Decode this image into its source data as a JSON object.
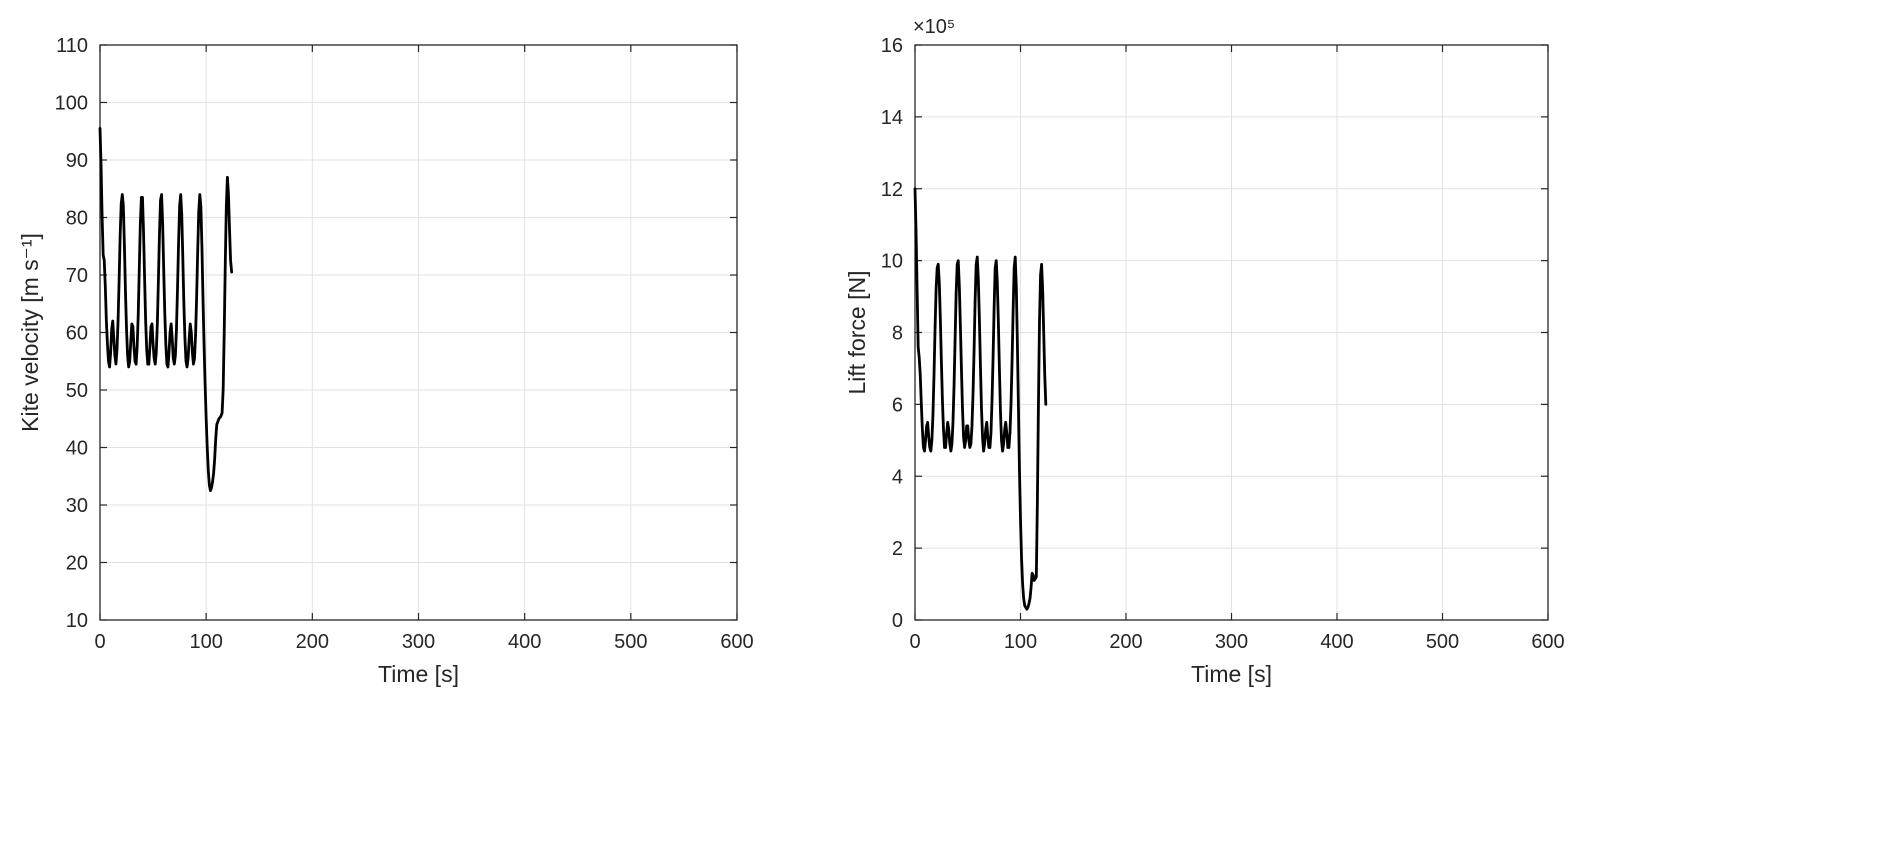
{
  "figure": {
    "background": "#ffffff",
    "axis_color": "#262626",
    "grid_color": "#e2e2e2",
    "line_color": "#000000"
  },
  "chart_data": [
    {
      "type": "line",
      "title": "",
      "xlabel": "Time [s]",
      "ylabel": "Kite velocity [m s⁻¹]",
      "xlim": [
        0,
        600
      ],
      "ylim": [
        10,
        110
      ],
      "xticks": [
        0,
        100,
        200,
        300,
        400,
        500,
        600
      ],
      "yticks": [
        10,
        20,
        30,
        40,
        50,
        60,
        70,
        80,
        90,
        100,
        110
      ],
      "xtick_labels": [
        "0",
        "100",
        "200",
        "300",
        "400",
        "500",
        "600"
      ],
      "ytick_labels": [
        "10",
        "20",
        "30",
        "40",
        "50",
        "60",
        "70",
        "80",
        "90",
        "100",
        "110"
      ],
      "grid": true,
      "legend": null,
      "series": [
        {
          "name": "kite_velocity",
          "points": [
            [
              0,
              95.5
            ],
            [
              1,
              89
            ],
            [
              2,
              80
            ],
            [
              3,
              73.5
            ],
            [
              4,
              72.5
            ],
            [
              5,
              68
            ],
            [
              6,
              62
            ],
            [
              7,
              58
            ],
            [
              8,
              55
            ],
            [
              9,
              54
            ],
            [
              10,
              56.5
            ],
            [
              11,
              60.5
            ],
            [
              12,
              62
            ],
            [
              13,
              59
            ],
            [
              14,
              56
            ],
            [
              15,
              54.5
            ],
            [
              16,
              57
            ],
            [
              17,
              62
            ],
            [
              18,
              69
            ],
            [
              19,
              77
            ],
            [
              20,
              82.5
            ],
            [
              21,
              84
            ],
            [
              22,
              82
            ],
            [
              23,
              75
            ],
            [
              24,
              67
            ],
            [
              25,
              60.5
            ],
            [
              26,
              56
            ],
            [
              27,
              54
            ],
            [
              28,
              55
            ],
            [
              29,
              58.5
            ],
            [
              30,
              61.5
            ],
            [
              31,
              61
            ],
            [
              32,
              57.5
            ],
            [
              33,
              55
            ],
            [
              34,
              54.5
            ],
            [
              35,
              57.5
            ],
            [
              36,
              63
            ],
            [
              37,
              71
            ],
            [
              38,
              79
            ],
            [
              39,
              83.5
            ],
            [
              40,
              83.5
            ],
            [
              41,
              77.5
            ],
            [
              42,
              69.5
            ],
            [
              43,
              62
            ],
            [
              44,
              57
            ],
            [
              45,
              54.5
            ],
            [
              46,
              54.5
            ],
            [
              47,
              57.5
            ],
            [
              48,
              61
            ],
            [
              49,
              61.5
            ],
            [
              50,
              58
            ],
            [
              51,
              55.5
            ],
            [
              52,
              54.5
            ],
            [
              53,
              56.5
            ],
            [
              54,
              61.5
            ],
            [
              55,
              69
            ],
            [
              56,
              77
            ],
            [
              57,
              83
            ],
            [
              58,
              84
            ],
            [
              59,
              79
            ],
            [
              60,
              71
            ],
            [
              61,
              63.5
            ],
            [
              62,
              58
            ],
            [
              63,
              54.5
            ],
            [
              64,
              54
            ],
            [
              65,
              56.5
            ],
            [
              66,
              60
            ],
            [
              67,
              61.5
            ],
            [
              68,
              59
            ],
            [
              69,
              55.5
            ],
            [
              70,
              54.5
            ],
            [
              71,
              56
            ],
            [
              72,
              60.5
            ],
            [
              73,
              67.5
            ],
            [
              74,
              75.5
            ],
            [
              75,
              82
            ],
            [
              76,
              84
            ],
            [
              77,
              80.5
            ],
            [
              78,
              73
            ],
            [
              79,
              65
            ],
            [
              80,
              59
            ],
            [
              81,
              55
            ],
            [
              82,
              54
            ],
            [
              83,
              55.5
            ],
            [
              84,
              59
            ],
            [
              85,
              61.5
            ],
            [
              86,
              60
            ],
            [
              87,
              56.5
            ],
            [
              88,
              54.5
            ],
            [
              89,
              55.5
            ],
            [
              90,
              59.5
            ],
            [
              91,
              66
            ],
            [
              92,
              74
            ],
            [
              93,
              81
            ],
            [
              94,
              84
            ],
            [
              95,
              82
            ],
            [
              96,
              75
            ],
            [
              97,
              66
            ],
            [
              98,
              58
            ],
            [
              99,
              51
            ],
            [
              100,
              45
            ],
            [
              101,
              40
            ],
            [
              102,
              36
            ],
            [
              103,
              33.5
            ],
            [
              104,
              32.5
            ],
            [
              105,
              33
            ],
            [
              106,
              34
            ],
            [
              107,
              35.5
            ],
            [
              108,
              38
            ],
            [
              109,
              41.5
            ],
            [
              110,
              44
            ],
            [
              111,
              44.5
            ],
            [
              112,
              45
            ],
            [
              113,
              45.2
            ],
            [
              114,
              45.5
            ],
            [
              115,
              46
            ],
            [
              116,
              50
            ],
            [
              117,
              60
            ],
            [
              118,
              72
            ],
            [
              119,
              82
            ],
            [
              120,
              87
            ],
            [
              121,
              84
            ],
            [
              122,
              78
            ],
            [
              123,
              72.5
            ],
            [
              124,
              70.5
            ]
          ]
        }
      ]
    },
    {
      "type": "line",
      "title": "",
      "xlabel": "Time [s]",
      "ylabel": "Lift force [N]",
      "exponent_label": "×10⁵",
      "xlim": [
        0,
        600
      ],
      "ylim": [
        0,
        16
      ],
      "xticks": [
        0,
        100,
        200,
        300,
        400,
        500,
        600
      ],
      "yticks": [
        0,
        2,
        4,
        6,
        8,
        10,
        12,
        14,
        16
      ],
      "xtick_labels": [
        "0",
        "100",
        "200",
        "300",
        "400",
        "500",
        "600"
      ],
      "ytick_labels": [
        "0",
        "2",
        "4",
        "6",
        "8",
        "10",
        "12",
        "14",
        "16"
      ],
      "grid": true,
      "legend": null,
      "series": [
        {
          "name": "lift_force",
          "points": [
            [
              0,
              12.0
            ],
            [
              1,
              10.8
            ],
            [
              2,
              9.2
            ],
            [
              3,
              7.6
            ],
            [
              4,
              7.3
            ],
            [
              5,
              6.8
            ],
            [
              6,
              6.0
            ],
            [
              7,
              5.3
            ],
            [
              8,
              4.8
            ],
            [
              9,
              4.7
            ],
            [
              10,
              5.0
            ],
            [
              11,
              5.4
            ],
            [
              12,
              5.5
            ],
            [
              13,
              5.1
            ],
            [
              14,
              4.8
            ],
            [
              15,
              4.7
            ],
            [
              16,
              5.0
            ],
            [
              17,
              5.7
            ],
            [
              18,
              6.8
            ],
            [
              19,
              8.1
            ],
            [
              20,
              9.2
            ],
            [
              21,
              9.8
            ],
            [
              22,
              9.9
            ],
            [
              23,
              9.4
            ],
            [
              24,
              8.4
            ],
            [
              25,
              7.2
            ],
            [
              26,
              6.1
            ],
            [
              27,
              5.3
            ],
            [
              28,
              4.8
            ],
            [
              29,
              4.8
            ],
            [
              30,
              5.2
            ],
            [
              31,
              5.5
            ],
            [
              32,
              5.3
            ],
            [
              33,
              4.9
            ],
            [
              34,
              4.7
            ],
            [
              35,
              4.9
            ],
            [
              36,
              5.5
            ],
            [
              37,
              6.5
            ],
            [
              38,
              7.8
            ],
            [
              39,
              9.1
            ],
            [
              40,
              9.9
            ],
            [
              41,
              10.0
            ],
            [
              42,
              9.3
            ],
            [
              43,
              8.2
            ],
            [
              44,
              7.0
            ],
            [
              45,
              5.9
            ],
            [
              46,
              5.1
            ],
            [
              47,
              4.8
            ],
            [
              48,
              5.0
            ],
            [
              49,
              5.4
            ],
            [
              50,
              5.4
            ],
            [
              51,
              5.0
            ],
            [
              52,
              4.8
            ],
            [
              53,
              4.9
            ],
            [
              54,
              5.4
            ],
            [
              55,
              6.3
            ],
            [
              56,
              7.5
            ],
            [
              57,
              8.9
            ],
            [
              58,
              9.9
            ],
            [
              59,
              10.1
            ],
            [
              60,
              9.5
            ],
            [
              61,
              8.4
            ],
            [
              62,
              7.1
            ],
            [
              63,
              5.9
            ],
            [
              64,
              5.1
            ],
            [
              65,
              4.7
            ],
            [
              66,
              4.9
            ],
            [
              67,
              5.3
            ],
            [
              68,
              5.5
            ],
            [
              69,
              5.1
            ],
            [
              70,
              4.8
            ],
            [
              71,
              4.8
            ],
            [
              72,
              5.2
            ],
            [
              73,
              6.1
            ],
            [
              74,
              7.3
            ],
            [
              75,
              8.7
            ],
            [
              76,
              9.8
            ],
            [
              77,
              10.0
            ],
            [
              78,
              9.4
            ],
            [
              79,
              8.3
            ],
            [
              80,
              7.0
            ],
            [
              81,
              5.8
            ],
            [
              82,
              5.0
            ],
            [
              83,
              4.7
            ],
            [
              84,
              4.9
            ],
            [
              85,
              5.3
            ],
            [
              86,
              5.5
            ],
            [
              87,
              5.2
            ],
            [
              88,
              4.8
            ],
            [
              89,
              4.8
            ],
            [
              90,
              5.2
            ],
            [
              91,
              6.0
            ],
            [
              92,
              7.2
            ],
            [
              93,
              8.6
            ],
            [
              94,
              9.8
            ],
            [
              95,
              10.1
            ],
            [
              96,
              9.3
            ],
            [
              97,
              7.8
            ],
            [
              98,
              6.0
            ],
            [
              99,
              4.2
            ],
            [
              100,
              2.8
            ],
            [
              101,
              1.7
            ],
            [
              102,
              1.0
            ],
            [
              103,
              0.6
            ],
            [
              104,
              0.4
            ],
            [
              105,
              0.35
            ],
            [
              106,
              0.3
            ],
            [
              107,
              0.35
            ],
            [
              108,
              0.45
            ],
            [
              109,
              0.6
            ],
            [
              110,
              0.9
            ],
            [
              111,
              1.3
            ],
            [
              112,
              1.25
            ],
            [
              113,
              1.1
            ],
            [
              114,
              1.15
            ],
            [
              115,
              1.2
            ],
            [
              116,
              3.3
            ],
            [
              117,
              6.0
            ],
            [
              118,
              8.3
            ],
            [
              119,
              9.6
            ],
            [
              120,
              9.9
            ],
            [
              121,
              9.2
            ],
            [
              122,
              8.0
            ],
            [
              123,
              6.8
            ],
            [
              124,
              6.0
            ]
          ]
        }
      ]
    }
  ]
}
